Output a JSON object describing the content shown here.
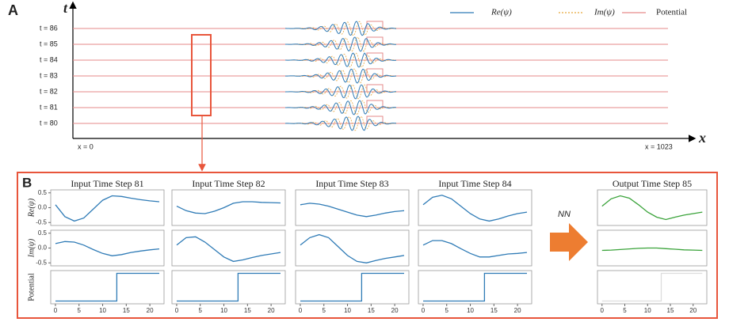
{
  "panel_a": {
    "label": "A",
    "t_axis": "t",
    "x_axis": "x",
    "x_min_label": "x = 0",
    "x_max_label": "x = 1023",
    "rows": [
      "t = 86",
      "t = 85",
      "t = 84",
      "t = 83",
      "t = 82",
      "t = 81",
      "t = 80"
    ],
    "legend": [
      "Re(ψ)",
      "Im(ψ)",
      "Potential"
    ]
  },
  "panel_b": {
    "label": "B",
    "arrow_label": "NN"
  },
  "chart_data": [
    {
      "type": "line",
      "title": "Input Time Step 81",
      "y_label": "Re(ψ)",
      "x": [
        0,
        2,
        4,
        6,
        8,
        10,
        12,
        14,
        16,
        18,
        20,
        22
      ],
      "series": [
        {
          "color": "#2f7bb6",
          "values": [
            0.1,
            -0.3,
            -0.45,
            -0.35,
            -0.05,
            0.25,
            0.4,
            0.38,
            0.32,
            0.27,
            0.23,
            0.2
          ]
        }
      ],
      "xlim": [
        -1,
        23
      ],
      "ylim": [
        -0.6,
        0.6
      ],
      "yticks": [
        0.5,
        {
          "value": 0,
          "label": "0.0"
        },
        -0.5
      ]
    },
    {
      "type": "line",
      "title": "Input Time Step 82",
      "x": [
        0,
        2,
        4,
        6,
        8,
        10,
        12,
        14,
        16,
        18,
        20,
        22
      ],
      "series": [
        {
          "color": "#2f7bb6",
          "values": [
            0.05,
            -0.1,
            -0.18,
            -0.2,
            -0.12,
            0,
            0.15,
            0.2,
            0.2,
            0.18,
            0.17,
            0.16
          ]
        }
      ],
      "xlim": [
        -1,
        23
      ],
      "ylim": [
        -0.6,
        0.6
      ]
    },
    {
      "type": "line",
      "title": "Input Time Step 83",
      "x": [
        0,
        2,
        4,
        6,
        8,
        10,
        12,
        14,
        16,
        18,
        20,
        22
      ],
      "series": [
        {
          "color": "#2f7bb6",
          "values": [
            0.1,
            0.15,
            0.12,
            0.05,
            -0.05,
            -0.15,
            -0.25,
            -0.3,
            -0.25,
            -0.18,
            -0.13,
            -0.1
          ]
        }
      ],
      "xlim": [
        -1,
        23
      ],
      "ylim": [
        -0.6,
        0.6
      ]
    },
    {
      "type": "line",
      "title": "Input Time Step 84",
      "x": [
        0,
        2,
        4,
        6,
        8,
        10,
        12,
        14,
        16,
        18,
        20,
        22
      ],
      "series": [
        {
          "color": "#2f7bb6",
          "values": [
            0.1,
            0.35,
            0.42,
            0.3,
            0.05,
            -0.2,
            -0.38,
            -0.45,
            -0.38,
            -0.28,
            -0.2,
            -0.15
          ]
        }
      ],
      "xlim": [
        -1,
        23
      ],
      "ylim": [
        -0.6,
        0.6
      ]
    },
    {
      "type": "line",
      "title": "Output Time Step 85",
      "x": [
        0,
        2,
        4,
        6,
        8,
        10,
        12,
        14,
        16,
        18,
        20,
        22
      ],
      "series": [
        {
          "color": "#3aa33a",
          "values": [
            0.05,
            0.3,
            0.4,
            0.32,
            0.1,
            -0.15,
            -0.32,
            -0.4,
            -0.32,
            -0.25,
            -0.2,
            -0.15
          ]
        }
      ],
      "xlim": [
        -1,
        23
      ],
      "ylim": [
        -0.6,
        0.6
      ]
    },
    {
      "type": "line",
      "y_label": "Im(ψ)",
      "x": [
        0,
        2,
        4,
        6,
        8,
        10,
        12,
        14,
        16,
        18,
        20,
        22
      ],
      "series": [
        {
          "color": "#2f7bb6",
          "values": [
            0.15,
            0.22,
            0.2,
            0.1,
            -0.05,
            -0.18,
            -0.26,
            -0.22,
            -0.15,
            -0.1,
            -0.06,
            -0.03
          ]
        }
      ],
      "xlim": [
        -1,
        23
      ],
      "ylim": [
        -0.6,
        0.6
      ],
      "yticks": [
        0.5,
        {
          "value": 0,
          "label": "0.0"
        },
        -0.5
      ]
    },
    {
      "type": "line",
      "x": [
        0,
        2,
        4,
        6,
        8,
        10,
        12,
        14,
        16,
        18,
        20,
        22
      ],
      "series": [
        {
          "color": "#2f7bb6",
          "values": [
            0.1,
            0.35,
            0.38,
            0.2,
            -0.05,
            -0.3,
            -0.45,
            -0.4,
            -0.32,
            -0.25,
            -0.2,
            -0.15
          ]
        }
      ],
      "xlim": [
        -1,
        23
      ],
      "ylim": [
        -0.6,
        0.6
      ]
    },
    {
      "type": "line",
      "x": [
        0,
        2,
        4,
        6,
        8,
        10,
        12,
        14,
        16,
        18,
        20,
        22
      ],
      "series": [
        {
          "color": "#2f7bb6",
          "values": [
            0.1,
            0.35,
            0.45,
            0.35,
            0.05,
            -0.25,
            -0.45,
            -0.5,
            -0.42,
            -0.35,
            -0.3,
            -0.25
          ]
        }
      ],
      "xlim": [
        -1,
        23
      ],
      "ylim": [
        -0.6,
        0.6
      ]
    },
    {
      "type": "line",
      "x": [
        0,
        2,
        4,
        6,
        8,
        10,
        12,
        14,
        16,
        18,
        20,
        22
      ],
      "series": [
        {
          "color": "#2f7bb6",
          "values": [
            0.1,
            0.25,
            0.25,
            0.15,
            -0.02,
            -0.18,
            -0.3,
            -0.3,
            -0.25,
            -0.2,
            -0.18,
            -0.15
          ]
        }
      ],
      "xlim": [
        -1,
        23
      ],
      "ylim": [
        -0.6,
        0.6
      ]
    },
    {
      "type": "line",
      "x": [
        0,
        2,
        4,
        6,
        8,
        10,
        12,
        14,
        16,
        18,
        20,
        22
      ],
      "series": [
        {
          "color": "#3aa33a",
          "values": [
            -0.08,
            -0.07,
            -0.05,
            -0.03,
            -0.01,
            0,
            0,
            -0.02,
            -0.04,
            -0.06,
            -0.07,
            -0.08
          ]
        }
      ],
      "xlim": [
        -1,
        23
      ],
      "ylim": [
        -0.6,
        0.6
      ]
    },
    {
      "type": "line",
      "y_label": "Potential",
      "x": [
        0,
        13,
        13,
        22
      ],
      "series": [
        {
          "color": "#2f7bb6",
          "values": [
            0,
            0,
            1,
            1
          ]
        }
      ],
      "xlim": [
        -1,
        23
      ],
      "ylim": [
        -0.1,
        1.1
      ],
      "xticks": [
        0,
        5,
        10,
        15,
        20
      ]
    },
    {
      "type": "line",
      "x": [
        0,
        13,
        13,
        22
      ],
      "series": [
        {
          "color": "#2f7bb6",
          "values": [
            0,
            0,
            1,
            1
          ]
        }
      ],
      "xlim": [
        -1,
        23
      ],
      "ylim": [
        -0.1,
        1.1
      ],
      "xticks": [
        0,
        5,
        10,
        15,
        20
      ]
    },
    {
      "type": "line",
      "x": [
        0,
        13,
        13,
        22
      ],
      "series": [
        {
          "color": "#2f7bb6",
          "values": [
            0,
            0,
            1,
            1
          ]
        }
      ],
      "xlim": [
        -1,
        23
      ],
      "ylim": [
        -0.1,
        1.1
      ],
      "xticks": [
        0,
        5,
        10,
        15,
        20
      ]
    },
    {
      "type": "line",
      "x": [
        0,
        13,
        13,
        22
      ],
      "series": [
        {
          "color": "#2f7bb6",
          "values": [
            0,
            0,
            1,
            1
          ]
        }
      ],
      "xlim": [
        -1,
        23
      ],
      "ylim": [
        -0.1,
        1.1
      ],
      "xticks": [
        0,
        5,
        10,
        15,
        20
      ]
    },
    {
      "type": "line",
      "x": [
        0,
        13,
        13,
        22
      ],
      "series": [
        {
          "color": "#dddddd",
          "values": [
            0,
            0,
            1,
            1
          ]
        }
      ],
      "xlim": [
        -1,
        23
      ],
      "ylim": [
        -0.1,
        1.1
      ],
      "xticks": [
        0,
        5,
        10,
        15,
        20
      ]
    }
  ]
}
